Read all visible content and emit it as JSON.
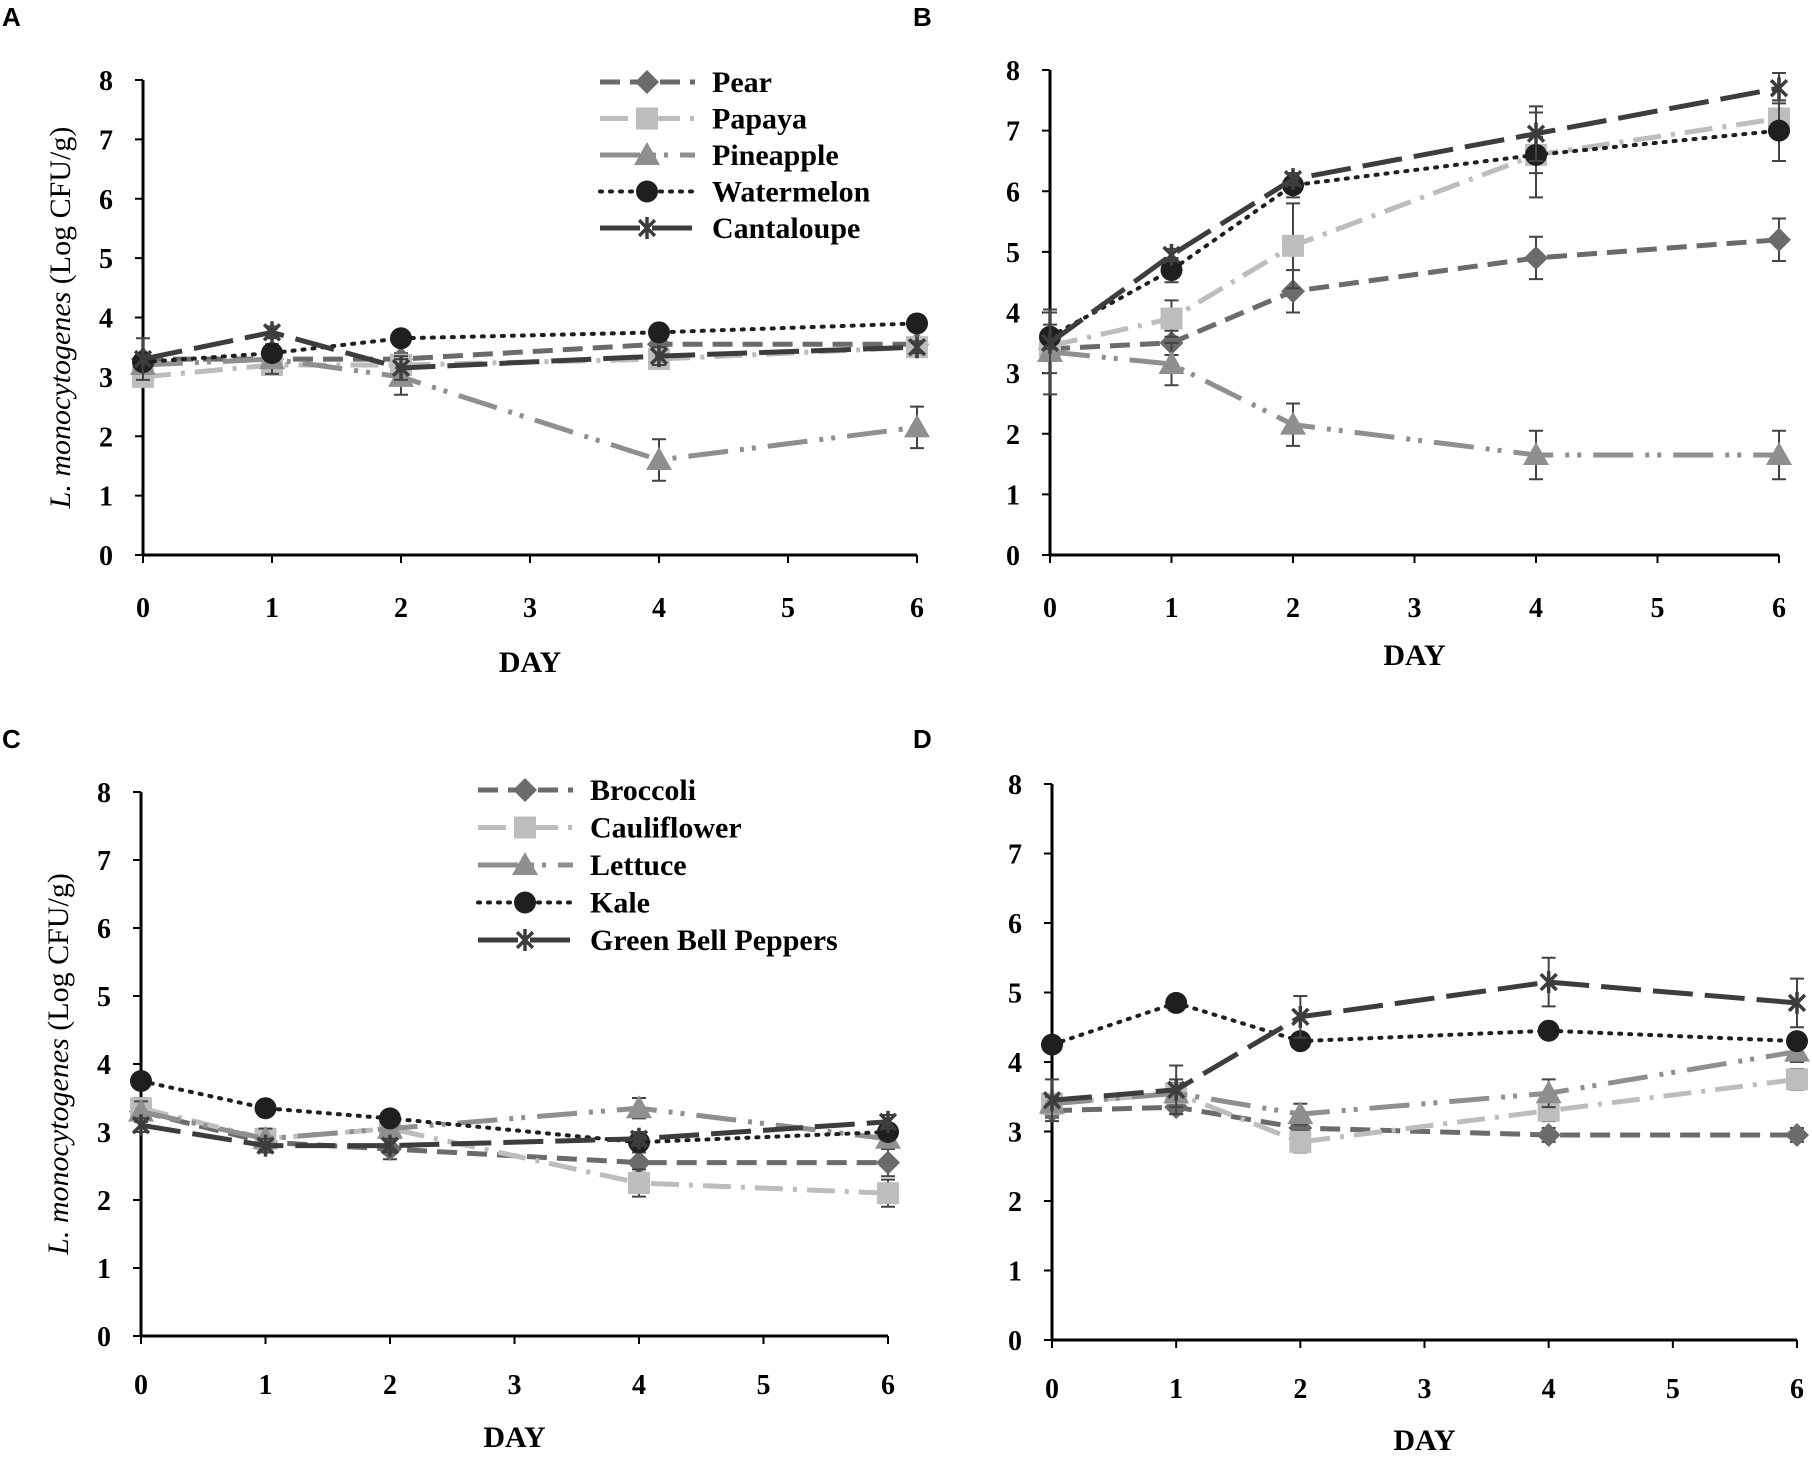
{
  "chart_data": [
    {
      "panel": "A",
      "type": "line",
      "xlabel": "DAY",
      "ylabel_italic": "L. monocytogenes",
      "ylabel_rest": "(Log CFU/g)",
      "xlim": [
        0,
        6
      ],
      "ylim": [
        0,
        8
      ],
      "xticks": [
        "0",
        "1",
        "2",
        "3",
        "4",
        "5",
        "6"
      ],
      "yticks": [
        "0",
        "1",
        "2",
        "3",
        "4",
        "5",
        "6",
        "7",
        "8"
      ],
      "show_ylabel": true,
      "legend": "top-right",
      "series": [
        {
          "name": "Pear",
          "style": "pear",
          "x": [
            0,
            1,
            2,
            4,
            6
          ],
          "y": [
            3.3,
            3.3,
            3.3,
            3.55,
            3.55
          ],
          "err": [
            0.1,
            0.1,
            0.1,
            0.1,
            0.1
          ]
        },
        {
          "name": "Papaya",
          "style": "papaya",
          "x": [
            0,
            1,
            2,
            4,
            6
          ],
          "y": [
            3.0,
            3.2,
            3.2,
            3.3,
            3.5
          ],
          "err": [
            0.1,
            0.1,
            0.1,
            0.1,
            0.1
          ]
        },
        {
          "name": "Pineapple",
          "style": "pineapple",
          "x": [
            0,
            1,
            2,
            4,
            6
          ],
          "y": [
            3.2,
            3.3,
            3.0,
            1.6,
            2.15
          ],
          "err": [
            0.15,
            0.25,
            0.3,
            0.35,
            0.35
          ]
        },
        {
          "name": "Watermelon",
          "style": "watermelon",
          "x": [
            0,
            1,
            2,
            4,
            6
          ],
          "y": [
            3.25,
            3.4,
            3.65,
            3.75,
            3.9
          ],
          "err": [
            0.1,
            0.1,
            0.1,
            0.1,
            0.1
          ]
        },
        {
          "name": "Cantaloupe",
          "style": "cantaloupe",
          "x": [
            0,
            1,
            2,
            4,
            6
          ],
          "y": [
            3.3,
            3.75,
            3.15,
            3.35,
            3.5
          ],
          "err": [
            0.35,
            0.1,
            0.2,
            0.15,
            0.1
          ]
        }
      ]
    },
    {
      "panel": "B",
      "type": "line",
      "xlabel": "DAY",
      "ylabel_italic": "",
      "ylabel_rest": "",
      "xlim": [
        0,
        6
      ],
      "ylim": [
        0,
        8
      ],
      "xticks": [
        "0",
        "1",
        "2",
        "3",
        "4",
        "5",
        "6"
      ],
      "yticks": [
        "0",
        "1",
        "2",
        "3",
        "4",
        "5",
        "6",
        "7",
        "8"
      ],
      "show_ylabel": false,
      "legend": "none",
      "series": [
        {
          "name": "Pear",
          "style": "pear",
          "x": [
            0,
            1,
            2,
            4,
            6
          ],
          "y": [
            3.4,
            3.5,
            4.35,
            4.9,
            5.2
          ],
          "err": [
            0.2,
            0.2,
            0.35,
            0.35,
            0.35
          ]
        },
        {
          "name": "Papaya",
          "style": "papaya",
          "x": [
            0,
            1,
            2,
            4,
            6
          ],
          "y": [
            3.45,
            3.9,
            5.1,
            6.6,
            7.2
          ],
          "err": [
            0.2,
            0.3,
            0.7,
            0.3,
            0.3
          ]
        },
        {
          "name": "Pineapple",
          "style": "pineapple",
          "x": [
            0,
            1,
            2,
            4,
            6
          ],
          "y": [
            3.35,
            3.15,
            2.15,
            1.65,
            1.65
          ],
          "err": [
            0.7,
            0.35,
            0.35,
            0.4,
            0.4
          ]
        },
        {
          "name": "Watermelon",
          "style": "watermelon",
          "x": [
            0,
            1,
            2,
            4,
            6
          ],
          "y": [
            3.6,
            4.7,
            6.1,
            6.6,
            7.0
          ],
          "err": [
            0.2,
            0.2,
            0.2,
            0.7,
            0.5
          ]
        },
        {
          "name": "Cantaloupe",
          "style": "cantaloupe",
          "x": [
            0,
            1,
            2,
            4,
            6
          ],
          "y": [
            3.5,
            4.95,
            6.2,
            6.95,
            7.7
          ],
          "err": [
            0.5,
            0.1,
            0.1,
            0.45,
            0.25
          ]
        }
      ]
    },
    {
      "panel": "C",
      "type": "line",
      "xlabel": "DAY",
      "ylabel_italic": "L. monocytogenes",
      "ylabel_rest": "(Log CFU/g)",
      "xlim": [
        0,
        6
      ],
      "ylim": [
        0,
        8
      ],
      "xticks": [
        "0",
        "1",
        "2",
        "3",
        "4",
        "5",
        "6"
      ],
      "yticks": [
        "0",
        "1",
        "2",
        "3",
        "4",
        "5",
        "6",
        "7",
        "8"
      ],
      "show_ylabel": true,
      "legend": "top-right",
      "series": [
        {
          "name": "Broccoli",
          "style": "pear",
          "x": [
            0,
            1,
            2,
            4,
            6
          ],
          "y": [
            3.3,
            2.85,
            2.75,
            2.55,
            2.55
          ],
          "err": [
            0.15,
            0.15,
            0.15,
            0.15,
            0.2
          ]
        },
        {
          "name": "Cauliflower",
          "style": "papaya",
          "x": [
            0,
            1,
            2,
            4,
            6
          ],
          "y": [
            3.35,
            2.9,
            3.05,
            2.25,
            2.1
          ],
          "err": [
            0.15,
            0.15,
            0.15,
            0.2,
            0.2
          ]
        },
        {
          "name": "Lettuce",
          "style": "pineapple",
          "x": [
            0,
            1,
            2,
            4,
            6
          ],
          "y": [
            3.3,
            2.9,
            3.05,
            3.35,
            2.9
          ],
          "err": [
            0.15,
            0.15,
            0.15,
            0.15,
            0.15
          ]
        },
        {
          "name": "Kale",
          "style": "watermelon",
          "x": [
            0,
            1,
            2,
            4,
            6
          ],
          "y": [
            3.75,
            3.35,
            3.2,
            2.85,
            3.0
          ],
          "err": [
            0.1,
            0.1,
            0.1,
            0.15,
            0.1
          ]
        },
        {
          "name": "Green Bell Peppers",
          "style": "cantaloupe",
          "x": [
            0,
            1,
            2,
            4,
            6
          ],
          "y": [
            3.1,
            2.8,
            2.8,
            2.9,
            3.15
          ],
          "err": [
            0.1,
            0.1,
            0.1,
            0.1,
            0.1
          ]
        }
      ]
    },
    {
      "panel": "D",
      "type": "line",
      "xlabel": "DAY",
      "ylabel_italic": "",
      "ylabel_rest": "",
      "xlim": [
        0,
        6
      ],
      "ylim": [
        0,
        8
      ],
      "xticks": [
        "0",
        "1",
        "2",
        "3",
        "4",
        "5",
        "6"
      ],
      "yticks": [
        "0",
        "1",
        "2",
        "3",
        "4",
        "5",
        "6",
        "7",
        "8"
      ],
      "show_ylabel": false,
      "legend": "none",
      "series": [
        {
          "name": "Broccoli",
          "style": "pear",
          "x": [
            0,
            1,
            2,
            4,
            6
          ],
          "y": [
            3.3,
            3.35,
            3.05,
            2.95,
            2.95
          ],
          "err": [
            0.1,
            0.1,
            0.1,
            0.1,
            0.1
          ]
        },
        {
          "name": "Cauliflower",
          "style": "papaya",
          "x": [
            0,
            1,
            2,
            4,
            6
          ],
          "y": [
            3.4,
            3.55,
            2.85,
            3.3,
            3.75
          ],
          "err": [
            0.1,
            0.15,
            0.15,
            0.15,
            0.15
          ]
        },
        {
          "name": "Lettuce",
          "style": "pineapple",
          "x": [
            0,
            1,
            2,
            4,
            6
          ],
          "y": [
            3.4,
            3.55,
            3.25,
            3.55,
            4.15
          ],
          "err": [
            0.1,
            0.2,
            0.15,
            0.2,
            0.15
          ]
        },
        {
          "name": "Kale",
          "style": "watermelon",
          "x": [
            0,
            1,
            2,
            4,
            6
          ],
          "y": [
            4.25,
            4.85,
            4.3,
            4.45,
            4.3
          ],
          "err": [
            0.1,
            0.1,
            0.1,
            0.1,
            0.1
          ]
        },
        {
          "name": "Green Bell Peppers",
          "style": "cantaloupe",
          "x": [
            0,
            1,
            2,
            4,
            6
          ],
          "y": [
            3.45,
            3.6,
            4.65,
            5.15,
            4.85
          ],
          "err": [
            0.3,
            0.35,
            0.3,
            0.35,
            0.35
          ]
        }
      ]
    }
  ],
  "styles": {
    "pear": {
      "color": "#6b6b6b",
      "marker": "diamond",
      "dash": "dash"
    },
    "papaya": {
      "color": "#bdbdbd",
      "marker": "square",
      "dash": "dashdot"
    },
    "pineapple": {
      "color": "#8f8f8f",
      "marker": "triangle",
      "dash": "longdashdotdot"
    },
    "watermelon": {
      "color": "#1f1f1f",
      "marker": "circle",
      "dash": "dot"
    },
    "cantaloupe": {
      "color": "#3d3d3d",
      "marker": "star",
      "dash": "longdash"
    }
  },
  "errorbar_color": "#444444"
}
